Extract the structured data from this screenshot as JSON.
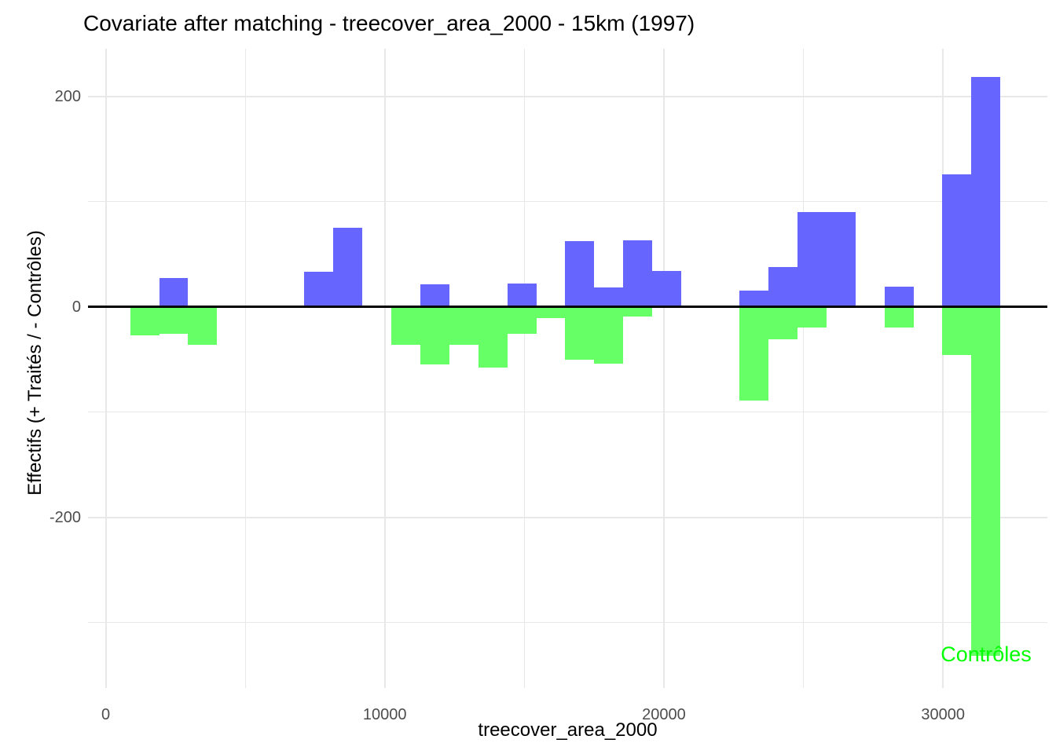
{
  "title": "Covariate after matching - treecover_area_2000 - 15km (1997)",
  "x_axis": {
    "label": "treecover_area_2000",
    "tick_values": [
      0,
      10000,
      20000,
      30000
    ],
    "tick_labels": [
      "0",
      "10000",
      "20000",
      "30000"
    ],
    "minor_tick_values": [
      5000,
      15000,
      25000
    ],
    "range": [
      -630,
      33740
    ]
  },
  "y_axis": {
    "label": "Effectifs (+ Traités / - Contrôles)",
    "tick_values": [
      200,
      0,
      -200
    ],
    "tick_labels": [
      "200",
      "0",
      "-200"
    ],
    "minor_tick_values": [
      100,
      -100,
      -300
    ],
    "range": [
      -362,
      245
    ]
  },
  "annotation": {
    "text": "Contrôles",
    "color": "#00ff00"
  },
  "colors": {
    "treated_bar": "#6666ff",
    "control_bar": "#66ff66",
    "gridline": "#e8e8e8",
    "zero_line": "#000000",
    "tick_text": "#4d4d4d",
    "title_text": "#000000"
  },
  "chart_data": {
    "type": "bar",
    "subtype": "mirrored-histogram",
    "title": "Covariate after matching - treecover_area_2000 - 15km (1997)",
    "xlabel": "treecover_area_2000",
    "ylabel": "Effectifs (+ Traités / - Contrôles)",
    "grid": true,
    "legend_position": "none",
    "series": [
      {
        "name": "Traités",
        "orientation": "positive",
        "color": "#6666ff"
      },
      {
        "name": "Contrôles",
        "orientation": "negative",
        "color": "#66ff66"
      }
    ],
    "bin_width": 1040,
    "xlim": [
      -630,
      33740
    ],
    "ylim": [
      -362,
      245
    ],
    "bins": [
      {
        "x0": 876,
        "x1": 1916,
        "treated": 0,
        "control": -27
      },
      {
        "x0": 1916,
        "x1": 2955,
        "treated": 27,
        "control": -26
      },
      {
        "x0": 2955,
        "x1": 3995,
        "treated": 0,
        "control": -36
      },
      {
        "x0": 7113,
        "x1": 8152,
        "treated": 33,
        "control": 0
      },
      {
        "x0": 8152,
        "x1": 9192,
        "treated": 75,
        "control": 0
      },
      {
        "x0": 10231,
        "x1": 11270,
        "treated": 0,
        "control": -36
      },
      {
        "x0": 11270,
        "x1": 12310,
        "treated": 21,
        "control": -55
      },
      {
        "x0": 12310,
        "x1": 13349,
        "treated": 0,
        "control": -36
      },
      {
        "x0": 13349,
        "x1": 14389,
        "treated": 0,
        "control": -58
      },
      {
        "x0": 14389,
        "x1": 15428,
        "treated": 22,
        "control": -26
      },
      {
        "x0": 15428,
        "x1": 16468,
        "treated": 0,
        "control": -11
      },
      {
        "x0": 16468,
        "x1": 17507,
        "treated": 62,
        "control": -50
      },
      {
        "x0": 17507,
        "x1": 18546,
        "treated": 18,
        "control": -54
      },
      {
        "x0": 18546,
        "x1": 19586,
        "treated": 63,
        "control": -9
      },
      {
        "x0": 19586,
        "x1": 20625,
        "treated": 34,
        "control": 0
      },
      {
        "x0": 22704,
        "x1": 23743,
        "treated": 15,
        "control": -89
      },
      {
        "x0": 23743,
        "x1": 24783,
        "treated": 38,
        "control": -31
      },
      {
        "x0": 24783,
        "x1": 25822,
        "treated": 90,
        "control": -20
      },
      {
        "x0": 25822,
        "x1": 26862,
        "treated": 90,
        "control": 0
      },
      {
        "x0": 27901,
        "x1": 28940,
        "treated": 19,
        "control": -20
      },
      {
        "x0": 29980,
        "x1": 31019,
        "treated": 126,
        "control": -46
      },
      {
        "x0": 31019,
        "x1": 32059,
        "treated": 218,
        "control": -332
      }
    ]
  }
}
